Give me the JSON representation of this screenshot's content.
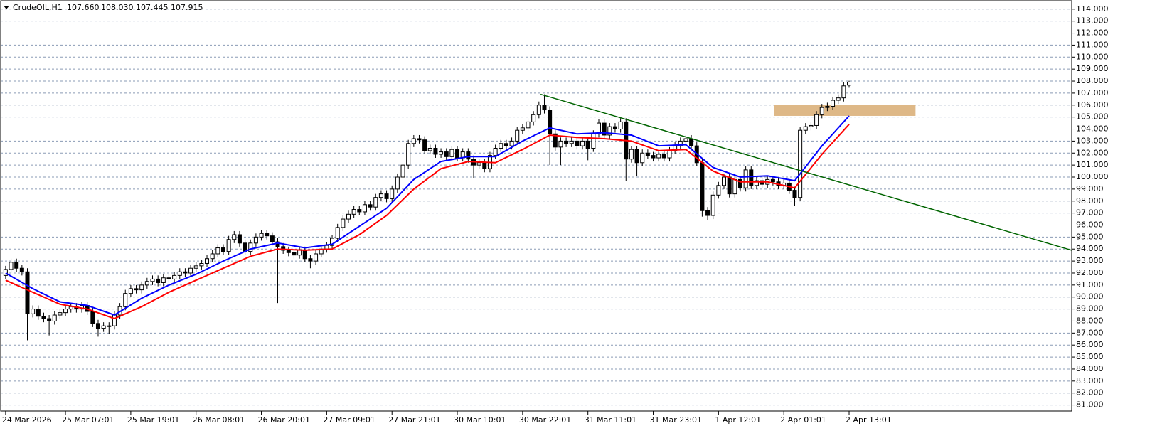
{
  "chart_data": {
    "type": "candlestick",
    "header": {
      "symbol": "CrudeOIL,H1",
      "open": "107.660",
      "high": "108.030",
      "low": "107.445",
      "close": "107.915"
    },
    "up_color": "#ffffff",
    "down_color": "#000000",
    "grid": true,
    "xlim": [
      -0.9,
      195.9
    ],
    "ylim": [
      80.5,
      114.7
    ],
    "yticks": [
      {
        "value": 114,
        "label": "114.000"
      },
      {
        "value": 113,
        "label": "113.000"
      },
      {
        "value": 112,
        "label": "112.000"
      },
      {
        "value": 111,
        "label": "111.000"
      },
      {
        "value": 110,
        "label": "110.000"
      },
      {
        "value": 109,
        "label": "109.000"
      },
      {
        "value": 108,
        "label": "108.000"
      },
      {
        "value": 107,
        "label": "107.000"
      },
      {
        "value": 106,
        "label": "106.000"
      },
      {
        "value": 105,
        "label": "105.000"
      },
      {
        "value": 104,
        "label": "104.000"
      },
      {
        "value": 103,
        "label": "103.000"
      },
      {
        "value": 102,
        "label": "102.000"
      },
      {
        "value": 101,
        "label": "101.000"
      },
      {
        "value": 100,
        "label": "100.000"
      },
      {
        "value": 99,
        "label": "99.000"
      },
      {
        "value": 98,
        "label": "98.000"
      },
      {
        "value": 97,
        "label": "97.000"
      },
      {
        "value": 96,
        "label": "96.000"
      },
      {
        "value": 95,
        "label": "95.000"
      },
      {
        "value": 94,
        "label": "94.000"
      },
      {
        "value": 93,
        "label": "93.000"
      },
      {
        "value": 92,
        "label": "92.000"
      },
      {
        "value": 91,
        "label": "91.000"
      },
      {
        "value": 90,
        "label": "90.000"
      },
      {
        "value": 89,
        "label": "89.000"
      },
      {
        "value": 88,
        "label": "88.000"
      },
      {
        "value": 87,
        "label": "87.000"
      },
      {
        "value": 86,
        "label": "86.000"
      },
      {
        "value": 85,
        "label": "85.000"
      },
      {
        "value": 84,
        "label": "84.000"
      },
      {
        "value": 83,
        "label": "83.000"
      },
      {
        "value": 82,
        "label": "82.000"
      },
      {
        "value": 81,
        "label": "81.000"
      }
    ],
    "categories": [
      "24 Mar 2026",
      null,
      null,
      null,
      null,
      null,
      null,
      null,
      null,
      null,
      null,
      "25 Mar 07:01",
      null,
      null,
      null,
      null,
      null,
      null,
      null,
      null,
      null,
      null,
      null,
      "25 Mar 19:01",
      null,
      null,
      null,
      null,
      null,
      null,
      null,
      null,
      null,
      null,
      null,
      "26 Mar 08:01",
      null,
      null,
      null,
      null,
      null,
      null,
      null,
      null,
      null,
      null,
      null,
      "26 Mar 20:01",
      null,
      null,
      null,
      null,
      null,
      null,
      null,
      null,
      null,
      null,
      null,
      "27 Mar 09:01",
      null,
      null,
      null,
      null,
      null,
      null,
      null,
      null,
      null,
      null,
      null,
      "27 Mar 21:01",
      null,
      null,
      null,
      null,
      null,
      null,
      null,
      null,
      null,
      null,
      null,
      "30 Mar 10:01",
      null,
      null,
      null,
      null,
      null,
      null,
      null,
      null,
      null,
      null,
      null,
      "30 Mar 22:01",
      null,
      null,
      null,
      null,
      null,
      null,
      null,
      null,
      null,
      null,
      null,
      "31 Mar 11:01",
      null,
      null,
      null,
      null,
      null,
      null,
      null,
      null,
      null,
      null,
      null,
      "31 Mar 23:01",
      null,
      null,
      null,
      null,
      null,
      null,
      null,
      null,
      null,
      null,
      null,
      "1 Apr 12:01",
      null,
      null,
      null,
      null,
      null,
      null,
      null,
      null,
      null,
      null,
      null,
      "2 Apr 01:01",
      null,
      null,
      null,
      null,
      null,
      null,
      null,
      null,
      null,
      null,
      null,
      "2 Apr 13:01"
    ],
    "candles": [
      [
        91.8,
        92.6,
        91.5,
        92.3
      ],
      [
        92.3,
        93.2,
        92.0,
        92.9
      ],
      [
        92.9,
        93.2,
        92.1,
        92.4
      ],
      [
        92.4,
        92.7,
        91.8,
        92.1
      ],
      [
        92.1,
        92.4,
        86.4,
        88.6
      ],
      [
        88.6,
        89.3,
        88.3,
        89.0
      ],
      [
        89.0,
        89.3,
        88.1,
        88.4
      ],
      [
        88.4,
        88.7,
        87.9,
        88.2
      ],
      [
        88.2,
        88.5,
        86.8,
        88.0
      ],
      [
        88.0,
        88.8,
        87.7,
        88.5
      ],
      [
        88.5,
        89.0,
        88.2,
        88.7
      ],
      [
        88.7,
        89.3,
        88.4,
        89.0
      ],
      [
        89.0,
        89.5,
        88.7,
        89.2
      ],
      [
        89.2,
        89.5,
        88.7,
        89.0
      ],
      [
        89.0,
        89.6,
        88.7,
        89.3
      ],
      [
        89.3,
        89.6,
        88.5,
        88.8
      ],
      [
        88.8,
        89.1,
        87.5,
        87.8
      ],
      [
        87.8,
        88.1,
        86.7,
        87.4
      ],
      [
        87.4,
        87.9,
        87.1,
        87.6
      ],
      [
        87.6,
        87.9,
        86.9,
        87.6
      ],
      [
        87.6,
        88.8,
        87.3,
        88.5
      ],
      [
        88.5,
        89.5,
        88.2,
        89.2
      ],
      [
        89.2,
        90.6,
        88.9,
        90.3
      ],
      [
        90.3,
        91.0,
        90.0,
        90.7
      ],
      [
        90.7,
        91.0,
        90.3,
        90.6
      ],
      [
        90.6,
        91.3,
        90.3,
        91.0
      ],
      [
        91.0,
        91.6,
        90.7,
        91.3
      ],
      [
        91.3,
        91.8,
        91.0,
        91.5
      ],
      [
        91.5,
        91.8,
        90.9,
        91.2
      ],
      [
        91.2,
        91.9,
        90.9,
        91.6
      ],
      [
        91.6,
        91.9,
        91.2,
        91.5
      ],
      [
        91.5,
        92.1,
        91.2,
        91.8
      ],
      [
        91.8,
        92.4,
        91.5,
        92.1
      ],
      [
        92.1,
        92.4,
        91.7,
        92.0
      ],
      [
        92.0,
        92.7,
        91.7,
        92.4
      ],
      [
        92.4,
        92.9,
        92.1,
        92.6
      ],
      [
        92.6,
        93.1,
        92.3,
        92.8
      ],
      [
        92.8,
        93.5,
        92.5,
        93.2
      ],
      [
        93.2,
        93.9,
        92.9,
        93.6
      ],
      [
        93.6,
        94.4,
        93.3,
        94.1
      ],
      [
        94.1,
        94.4,
        93.5,
        93.8
      ],
      [
        93.8,
        95.1,
        93.5,
        94.8
      ],
      [
        94.8,
        95.5,
        94.5,
        95.2
      ],
      [
        95.2,
        95.5,
        94.2,
        94.5
      ],
      [
        94.5,
        94.8,
        93.5,
        93.8
      ],
      [
        93.8,
        94.8,
        93.5,
        94.5
      ],
      [
        94.5,
        95.3,
        94.2,
        95.0
      ],
      [
        95.0,
        95.6,
        94.7,
        95.3
      ],
      [
        95.3,
        95.6,
        94.8,
        95.1
      ],
      [
        95.1,
        95.4,
        94.3,
        94.6
      ],
      [
        94.6,
        94.9,
        89.5,
        94.2
      ],
      [
        94.2,
        94.5,
        93.6,
        93.9
      ],
      [
        93.9,
        94.2,
        93.4,
        93.7
      ],
      [
        93.7,
        94.0,
        93.2,
        93.5
      ],
      [
        93.5,
        94.2,
        93.2,
        93.9
      ],
      [
        93.9,
        94.2,
        92.9,
        93.2
      ],
      [
        93.2,
        93.5,
        92.4,
        93.0
      ],
      [
        93.0,
        93.9,
        92.7,
        93.6
      ],
      [
        93.6,
        94.3,
        93.3,
        94.0
      ],
      [
        94.0,
        94.6,
        93.7,
        94.3
      ],
      [
        94.3,
        95.2,
        94.0,
        94.9
      ],
      [
        94.9,
        96.1,
        94.6,
        95.8
      ],
      [
        95.8,
        96.8,
        95.5,
        96.5
      ],
      [
        96.5,
        97.2,
        96.2,
        96.9
      ],
      [
        96.9,
        97.6,
        96.6,
        97.3
      ],
      [
        97.3,
        97.6,
        96.8,
        97.1
      ],
      [
        97.1,
        98.0,
        96.8,
        97.7
      ],
      [
        97.7,
        98.0,
        97.2,
        97.5
      ],
      [
        97.5,
        98.6,
        97.2,
        98.3
      ],
      [
        98.3,
        98.9,
        98.0,
        98.6
      ],
      [
        98.6,
        98.9,
        97.9,
        98.2
      ],
      [
        98.2,
        99.3,
        97.9,
        99.0
      ],
      [
        99.0,
        100.3,
        98.7,
        100.0
      ],
      [
        100.0,
        101.3,
        99.7,
        101.0
      ],
      [
        101.0,
        103.1,
        100.7,
        102.8
      ],
      [
        102.8,
        103.5,
        102.5,
        103.2
      ],
      [
        103.2,
        103.5,
        102.8,
        103.1
      ],
      [
        103.1,
        103.4,
        101.9,
        102.2
      ],
      [
        102.2,
        102.7,
        101.9,
        102.4
      ],
      [
        102.4,
        102.7,
        101.6,
        101.9
      ],
      [
        101.9,
        102.4,
        101.6,
        102.1
      ],
      [
        102.1,
        102.4,
        101.4,
        101.7
      ],
      [
        101.7,
        102.6,
        101.4,
        102.3
      ],
      [
        102.3,
        102.6,
        101.3,
        101.6
      ],
      [
        101.6,
        102.4,
        101.3,
        102.1
      ],
      [
        102.1,
        102.4,
        101.2,
        101.5
      ],
      [
        101.5,
        101.8,
        99.9,
        101.0
      ],
      [
        101.0,
        101.5,
        100.7,
        101.2
      ],
      [
        101.2,
        101.5,
        100.4,
        100.7
      ],
      [
        100.7,
        102.1,
        100.4,
        101.8
      ],
      [
        101.8,
        102.7,
        101.5,
        102.4
      ],
      [
        102.4,
        103.1,
        102.1,
        102.8
      ],
      [
        102.8,
        103.1,
        102.3,
        102.6
      ],
      [
        102.6,
        103.3,
        102.3,
        103.0
      ],
      [
        103.0,
        104.2,
        102.7,
        103.9
      ],
      [
        103.9,
        104.4,
        103.6,
        104.1
      ],
      [
        104.1,
        104.9,
        103.8,
        104.6
      ],
      [
        104.6,
        105.5,
        104.3,
        105.2
      ],
      [
        105.2,
        106.3,
        104.9,
        106.0
      ],
      [
        106.0,
        106.9,
        105.3,
        105.6
      ],
      [
        105.6,
        105.9,
        101.0,
        103.6
      ],
      [
        103.6,
        103.9,
        102.2,
        102.5
      ],
      [
        102.5,
        103.3,
        101.0,
        103.0
      ],
      [
        103.0,
        103.3,
        102.5,
        102.8
      ],
      [
        102.8,
        103.3,
        102.5,
        103.0
      ],
      [
        103.0,
        103.3,
        102.3,
        102.6
      ],
      [
        102.6,
        103.3,
        102.3,
        103.0
      ],
      [
        103.0,
        103.3,
        101.4,
        102.4
      ],
      [
        102.4,
        103.9,
        102.1,
        103.6
      ],
      [
        103.6,
        104.8,
        103.3,
        104.5
      ],
      [
        104.5,
        104.8,
        103.2,
        103.5
      ],
      [
        103.5,
        104.5,
        103.2,
        104.2
      ],
      [
        104.2,
        104.5,
        103.7,
        104.0
      ],
      [
        104.0,
        104.9,
        103.7,
        104.6
      ],
      [
        104.6,
        104.9,
        99.7,
        101.5
      ],
      [
        101.5,
        102.6,
        101.2,
        102.3
      ],
      [
        102.3,
        102.6,
        100.1,
        101.2
      ],
      [
        101.2,
        102.3,
        100.9,
        102.0
      ],
      [
        102.0,
        102.3,
        101.5,
        101.8
      ],
      [
        101.8,
        102.1,
        101.3,
        101.6
      ],
      [
        101.6,
        102.2,
        101.3,
        101.9
      ],
      [
        101.9,
        102.2,
        101.3,
        101.6
      ],
      [
        101.6,
        102.5,
        101.3,
        102.2
      ],
      [
        102.2,
        102.9,
        101.9,
        102.6
      ],
      [
        102.6,
        103.3,
        102.3,
        103.0
      ],
      [
        103.0,
        103.5,
        102.7,
        103.2
      ],
      [
        103.2,
        103.5,
        102.3,
        102.6
      ],
      [
        102.6,
        102.9,
        100.9,
        101.2
      ],
      [
        101.2,
        101.5,
        96.7,
        97.2
      ],
      [
        97.2,
        97.5,
        96.4,
        96.8
      ],
      [
        96.8,
        98.8,
        96.5,
        98.5
      ],
      [
        98.5,
        99.6,
        98.2,
        99.3
      ],
      [
        99.3,
        100.3,
        99.0,
        100.0
      ],
      [
        100.0,
        100.3,
        98.3,
        98.6
      ],
      [
        98.6,
        100.1,
        98.3,
        99.8
      ],
      [
        99.8,
        100.1,
        98.8,
        99.1
      ],
      [
        99.1,
        100.9,
        98.8,
        100.6
      ],
      [
        100.6,
        100.9,
        99.0,
        99.3
      ],
      [
        99.3,
        100.0,
        99.0,
        99.7
      ],
      [
        99.7,
        100.0,
        99.1,
        99.4
      ],
      [
        99.4,
        100.1,
        99.1,
        99.8
      ],
      [
        99.8,
        100.1,
        99.3,
        99.6
      ],
      [
        99.6,
        99.9,
        99.0,
        99.3
      ],
      [
        99.3,
        99.8,
        99.0,
        99.5
      ],
      [
        99.5,
        99.8,
        98.6,
        98.9
      ],
      [
        98.9,
        99.2,
        97.6,
        98.3
      ],
      [
        98.3,
        104.2,
        98.0,
        103.9
      ],
      [
        103.9,
        104.5,
        103.6,
        104.2
      ],
      [
        104.2,
        104.6,
        103.9,
        104.3
      ],
      [
        104.3,
        105.5,
        104.0,
        105.2
      ],
      [
        105.2,
        106.1,
        104.9,
        105.8
      ],
      [
        105.8,
        106.2,
        105.5,
        105.9
      ],
      [
        105.9,
        106.7,
        105.6,
        106.4
      ],
      [
        106.4,
        106.9,
        106.1,
        106.6
      ],
      [
        106.6,
        107.9,
        106.3,
        107.6
      ],
      [
        107.66,
        108.03,
        107.445,
        107.915
      ]
    ],
    "series": [
      {
        "color": "#0000ff",
        "x": [
          0,
          5,
          10,
          15,
          20,
          25,
          30,
          35,
          40,
          45,
          50,
          55,
          60,
          65,
          70,
          75,
          80,
          85,
          90,
          95,
          100,
          105,
          110,
          115,
          120,
          125,
          130,
          135,
          140,
          145,
          150,
          155
        ],
        "values": [
          92.0,
          90.7,
          89.6,
          89.3,
          88.5,
          89.9,
          91.0,
          91.9,
          93.0,
          94.0,
          94.5,
          94.1,
          94.4,
          95.9,
          97.4,
          99.8,
          101.3,
          101.7,
          101.7,
          103.0,
          104.1,
          103.6,
          103.7,
          103.5,
          102.6,
          102.7,
          100.8,
          100.0,
          100.1,
          99.7,
          102.6,
          105.1
        ]
      },
      {
        "color": "#ff0000",
        "x": [
          0,
          5,
          10,
          15,
          20,
          25,
          30,
          35,
          40,
          45,
          50,
          55,
          60,
          65,
          70,
          75,
          80,
          85,
          90,
          95,
          100,
          105,
          110,
          115,
          120,
          125,
          130,
          135,
          140,
          145,
          150,
          155
        ],
        "values": [
          91.4,
          90.4,
          89.4,
          89.0,
          88.2,
          89.2,
          90.4,
          91.4,
          92.4,
          93.4,
          94.0,
          93.9,
          94.0,
          95.2,
          96.8,
          99.0,
          100.7,
          101.3,
          101.2,
          102.3,
          103.5,
          103.3,
          103.2,
          103.0,
          102.2,
          102.3,
          100.5,
          99.6,
          99.6,
          99.1,
          101.9,
          104.4
        ]
      }
    ],
    "trendline": {
      "color": "#006400",
      "x": [
        98.3,
        195.9
      ],
      "values": [
        106.9,
        93.9
      ]
    },
    "zone": {
      "color": "#deb887",
      "x": [
        141.2,
        167.2
      ],
      "values": [
        106.0,
        105.1
      ]
    }
  }
}
